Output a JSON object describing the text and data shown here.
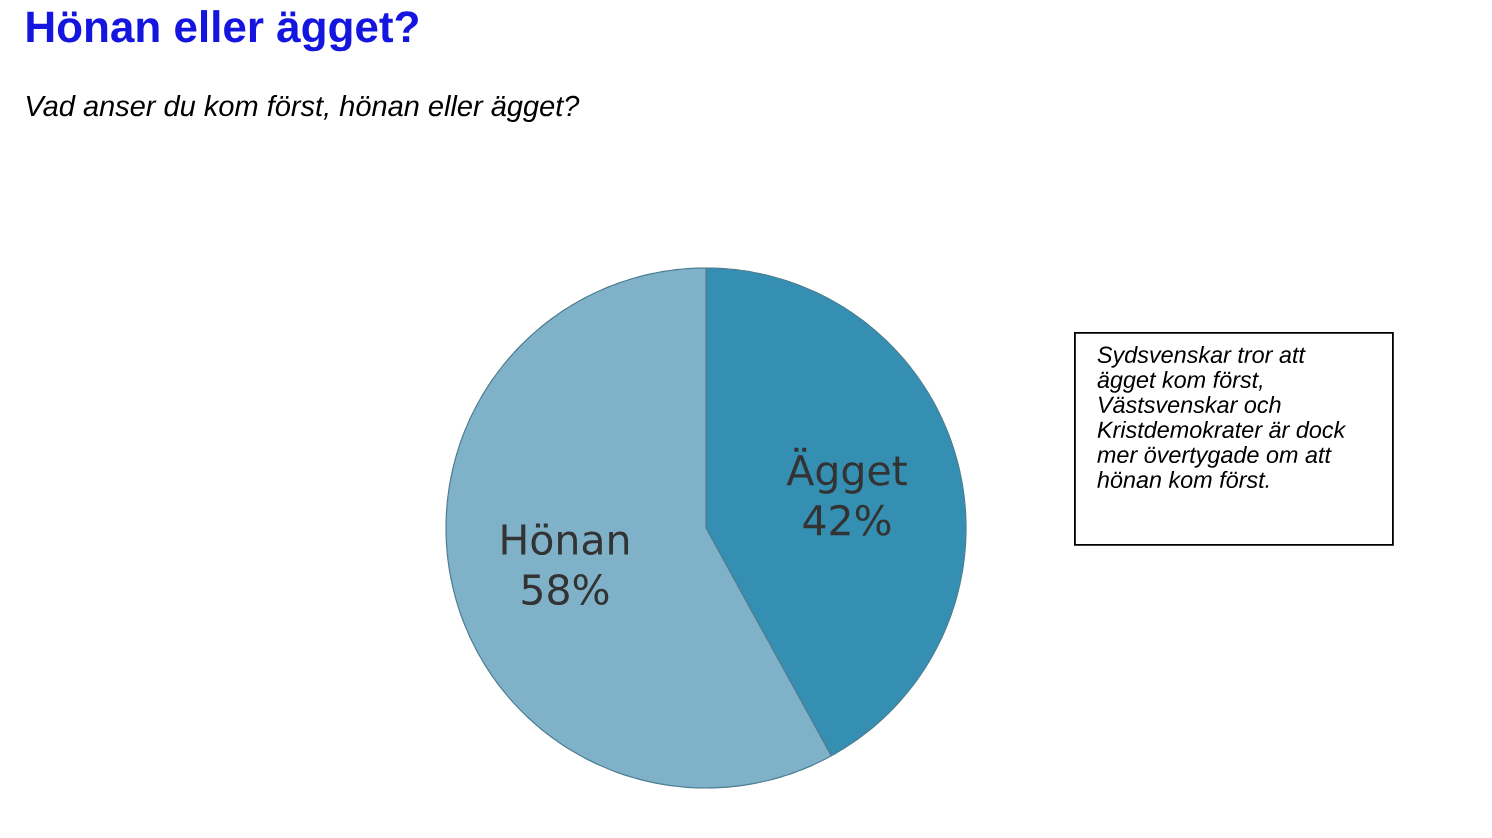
{
  "chart_data": {
    "type": "pie",
    "title": "Hönan eller ägget?",
    "subtitle": "Vad anser du kom först, hönan eller ägget?",
    "categories": [
      "Ägget",
      "Hönan"
    ],
    "values": [
      42,
      58
    ],
    "value_labels": [
      "42%",
      "58%"
    ],
    "colors": [
      "#358fb2",
      "#7fb2c9"
    ],
    "annotations": [
      "Sydsvenskar tror att ägget kom först, Västsvenskar och Kristdemokrater är dock mer övertygade om att hönan kom först."
    ]
  }
}
